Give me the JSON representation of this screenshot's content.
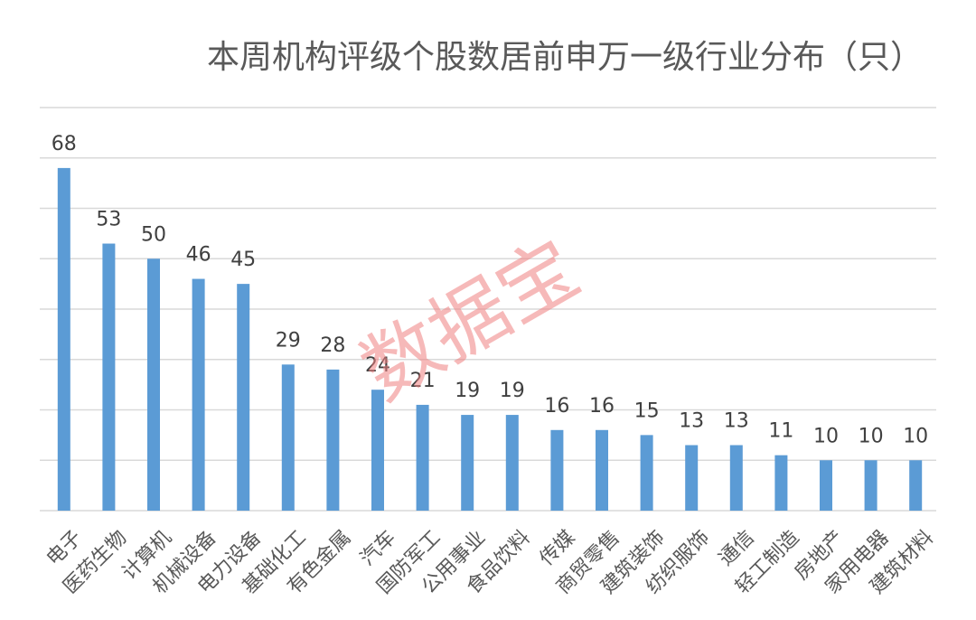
{
  "chart_data": {
    "type": "bar",
    "title": "本周机构评级个股数居前申万一级行业分布（只）",
    "categories": [
      "电子",
      "医药生物",
      "计算机",
      "机械设备",
      "电力设备",
      "基础化工",
      "有色金属",
      "汽车",
      "国防军工",
      "公用事业",
      "食品饮料",
      "传媒",
      "商贸零售",
      "建筑装饰",
      "纺织服饰",
      "通信",
      "轻工制造",
      "房地产",
      "家用电器",
      "建筑材料"
    ],
    "values": [
      68,
      53,
      50,
      46,
      45,
      29,
      28,
      24,
      21,
      19,
      19,
      16,
      16,
      15,
      13,
      13,
      11,
      10,
      10,
      10
    ],
    "ylim": [
      0,
      80
    ],
    "grid": true,
    "data_labels": true,
    "bar_color": "#5b9bd5"
  },
  "watermark": "数据宝"
}
